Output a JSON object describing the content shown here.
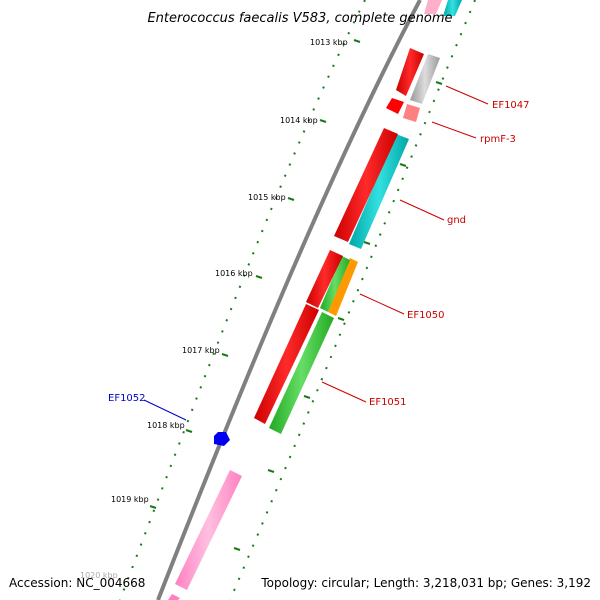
{
  "title": "Enterococcus faecalis V583, complete genome",
  "footer": {
    "accession": "Accession: NC_004668",
    "topology": "Topology: circular; Length: 3,218,031 bp; Genes: 3,192"
  },
  "ticks": [
    {
      "label": "1013 kbp",
      "kbp": 1013
    },
    {
      "label": "1014 kbp",
      "kbp": 1014
    },
    {
      "label": "1015 kbp",
      "kbp": 1015
    },
    {
      "label": "1016 kbp",
      "kbp": 1016
    },
    {
      "label": "1017 kbp",
      "kbp": 1017
    },
    {
      "label": "1018 kbp",
      "kbp": 1018
    },
    {
      "label": "1019 kbp",
      "kbp": 1019
    },
    {
      "label": "1020 kbp",
      "kbp": 1020
    }
  ],
  "gene_labels": [
    {
      "id": "EF1047",
      "text": "EF1047",
      "color": "#cc0000"
    },
    {
      "id": "rpmF-3",
      "text": "rpmF-3",
      "color": "#cc0000"
    },
    {
      "id": "gnd",
      "text": "gnd",
      "color": "#cc0000"
    },
    {
      "id": "EF1050",
      "text": "EF1050",
      "color": "#cc0000"
    },
    {
      "id": "EF1051",
      "text": "EF1051",
      "color": "#cc0000"
    },
    {
      "id": "EF1052",
      "text": "EF1052",
      "color": "#0000cc"
    }
  ],
  "colors": {
    "cds": "#ff0000",
    "cds_light": "#ff8080",
    "cyan": "#00cccc",
    "gray": "#bbbbbb",
    "green": "#33cc33",
    "orange": "#ff9900",
    "pink": "#ff99cc",
    "blue": "#0000ee",
    "backbone": "#808080",
    "tick": "#1a7a1a"
  }
}
